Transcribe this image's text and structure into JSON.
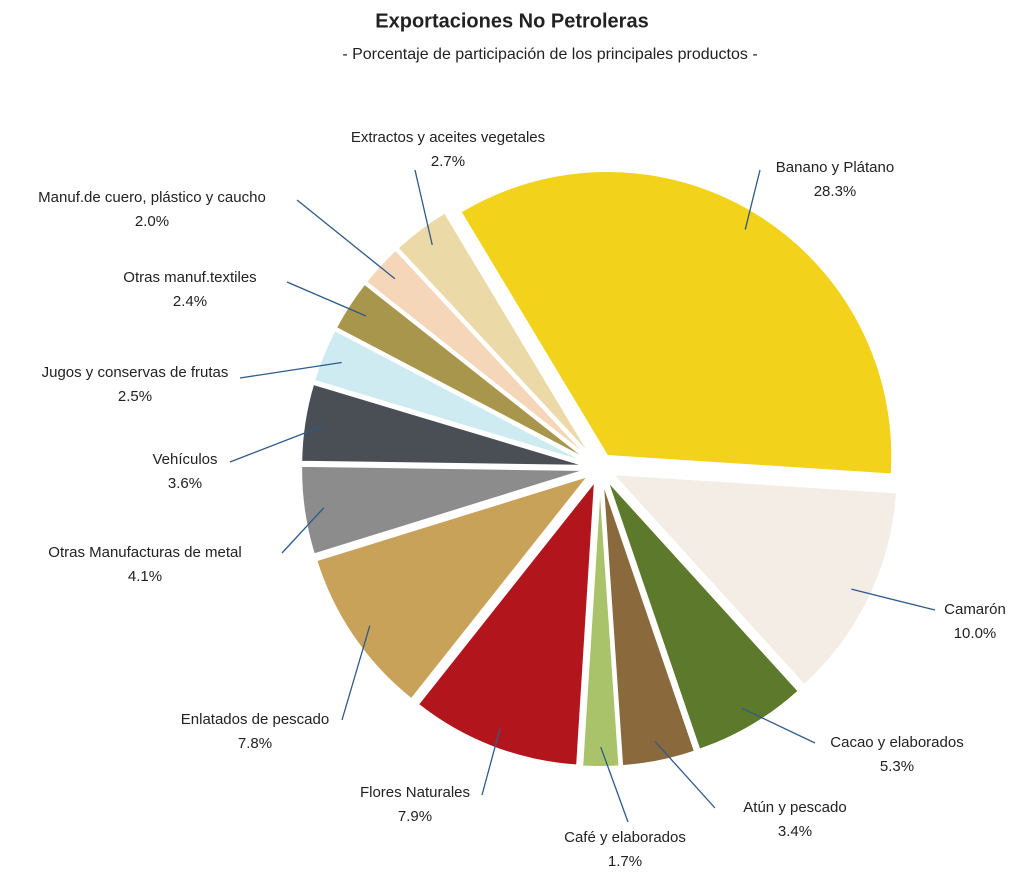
{
  "chart_data": {
    "type": "pie",
    "title": "Exportaciones No Petroleras",
    "subtitle": "- Porcentaje de participación de los principales productos -",
    "categories": [
      "Banano y Plátano",
      "Camarón",
      "Cacao y elaborados",
      "Atún y pescado",
      "Café y elaborados",
      "Flores Naturales",
      "Enlatados de pescado",
      "Otras Manufacturas de metal",
      "Vehículos",
      "Jugos y conservas de frutas",
      "Otras manuf.textiles",
      "Manuf.de cuero, plástico y caucho",
      "Extractos y aceites vegetales"
    ],
    "values": [
      28.3,
      10.0,
      5.3,
      3.4,
      1.7,
      7.9,
      7.8,
      4.1,
      3.6,
      2.5,
      2.4,
      2.0,
      2.7
    ],
    "value_labels": [
      "28.3%",
      "10.0%",
      "5.3%",
      "3.4%",
      "1.7%",
      "7.9%",
      "7.8%",
      "4.1%",
      "3.6%",
      "2.5%",
      "2.4%",
      "2.0%",
      "2.7%"
    ],
    "colors": [
      "#f2d21a",
      "#f4ede6",
      "#5d7a2c",
      "#8a6a3c",
      "#a9c36a",
      "#b3151c",
      "#c9a25a",
      "#8c8c8c",
      "#4a4e55",
      "#cdebf0",
      "#a8964c",
      "#f6d6b8",
      "#ecd9a8"
    ]
  }
}
